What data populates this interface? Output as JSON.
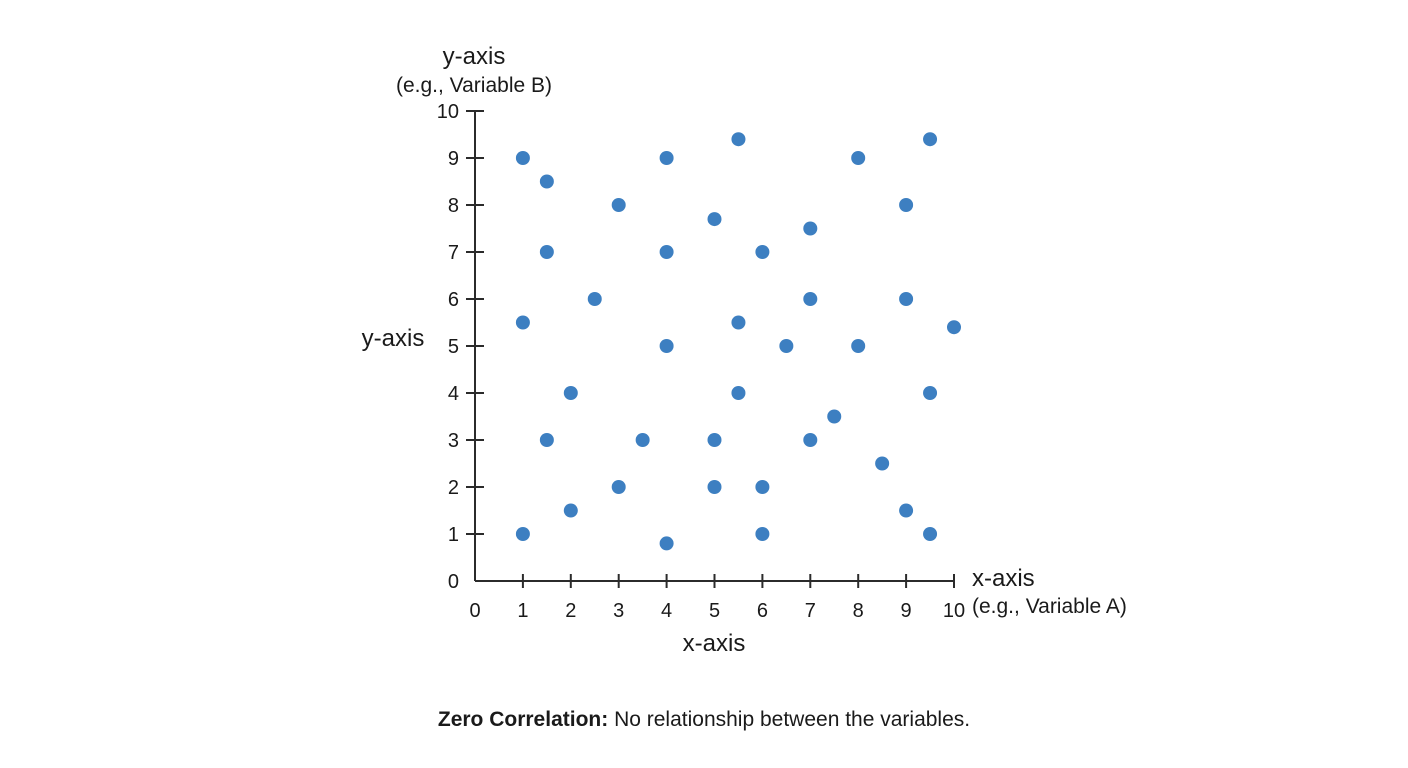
{
  "chart_data": {
    "type": "scatter",
    "xlabel": "x-axis",
    "ylabel": "y-axis",
    "x_end_label": "x-axis",
    "x_end_sublabel": "(e.g., Variable A)",
    "y_top_label": "y-axis",
    "y_top_sublabel": "(e.g., Variable B)",
    "xlim": [
      0,
      10
    ],
    "ylim": [
      0,
      10
    ],
    "x_ticks": [
      0,
      1,
      2,
      3,
      4,
      5,
      6,
      7,
      8,
      9,
      10
    ],
    "y_ticks": [
      0,
      1,
      2,
      3,
      4,
      5,
      6,
      7,
      8,
      9,
      10
    ],
    "grid": false,
    "point_color": "#3d7fc1",
    "points": [
      {
        "x": 1,
        "y": 9
      },
      {
        "x": 1.5,
        "y": 8.5
      },
      {
        "x": 1.5,
        "y": 7
      },
      {
        "x": 1,
        "y": 5.5
      },
      {
        "x": 2,
        "y": 4
      },
      {
        "x": 1.5,
        "y": 3
      },
      {
        "x": 2,
        "y": 1.5
      },
      {
        "x": 1,
        "y": 1
      },
      {
        "x": 2.5,
        "y": 6
      },
      {
        "x": 3,
        "y": 8
      },
      {
        "x": 3,
        "y": 2
      },
      {
        "x": 3.5,
        "y": 3
      },
      {
        "x": 4,
        "y": 9
      },
      {
        "x": 4,
        "y": 7
      },
      {
        "x": 4,
        "y": 5
      },
      {
        "x": 4,
        "y": 0.8
      },
      {
        "x": 5,
        "y": 7.7
      },
      {
        "x": 5,
        "y": 3
      },
      {
        "x": 5,
        "y": 2
      },
      {
        "x": 5.5,
        "y": 9.4
      },
      {
        "x": 5.5,
        "y": 5.5
      },
      {
        "x": 5.5,
        "y": 4
      },
      {
        "x": 6,
        "y": 7
      },
      {
        "x": 6,
        "y": 2
      },
      {
        "x": 6,
        "y": 1
      },
      {
        "x": 6.5,
        "y": 5
      },
      {
        "x": 7,
        "y": 7.5
      },
      {
        "x": 7,
        "y": 6
      },
      {
        "x": 7,
        "y": 3
      },
      {
        "x": 7.5,
        "y": 3.5
      },
      {
        "x": 8,
        "y": 9
      },
      {
        "x": 8,
        "y": 5
      },
      {
        "x": 8.5,
        "y": 2.5
      },
      {
        "x": 9,
        "y": 8
      },
      {
        "x": 9,
        "y": 6
      },
      {
        "x": 9,
        "y": 1.5
      },
      {
        "x": 9.5,
        "y": 9.4
      },
      {
        "x": 9.5,
        "y": 4
      },
      {
        "x": 9.5,
        "y": 1
      },
      {
        "x": 10,
        "y": 5.4
      }
    ]
  },
  "caption": {
    "bold": "Zero Correlation:",
    "text": " No relationship between the variables."
  }
}
